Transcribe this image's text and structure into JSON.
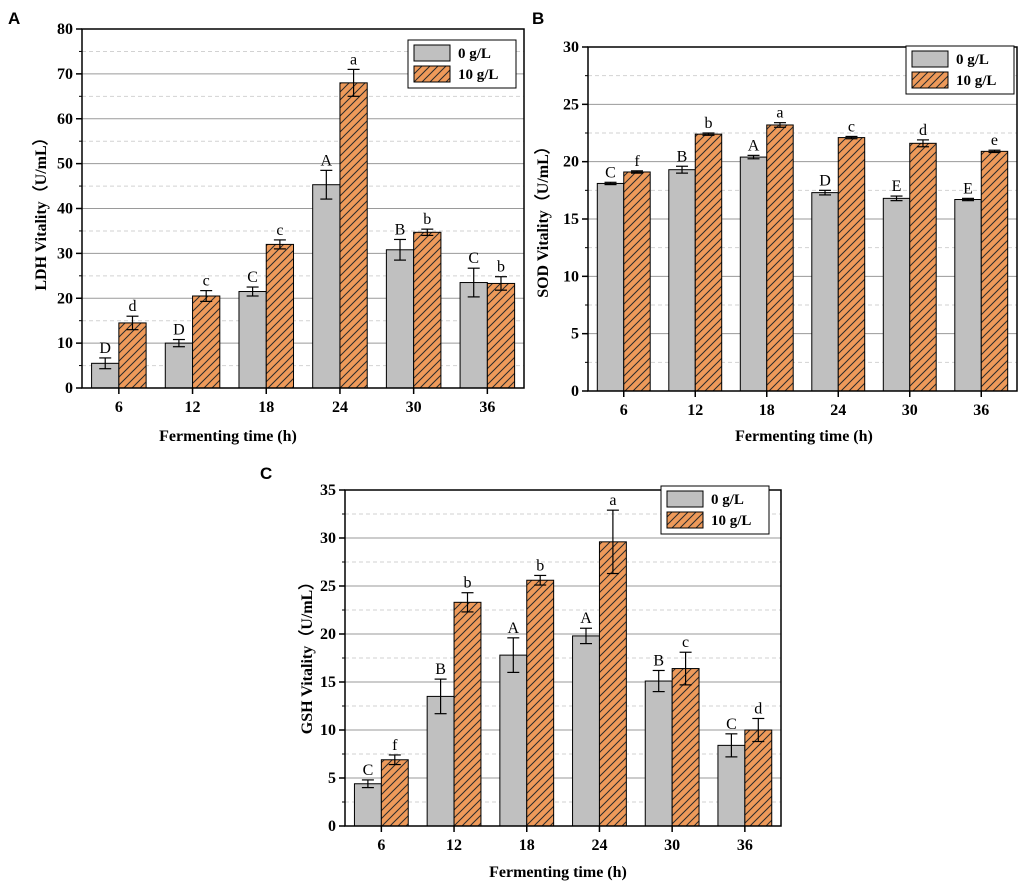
{
  "colors": {
    "control_fill": "#c0c0c0",
    "treatment_fill": "#ee9a5a",
    "hatch": "#2a2a2a",
    "grid_major": "#9a9a9a",
    "grid_minor": "#d2d2d2"
  },
  "chart_data": [
    {
      "panel": "A",
      "type": "bar",
      "xlabel": "Fermenting time (h)",
      "ylabel": "LDH Vitality（U/mL）",
      "categories": [
        "6",
        "12",
        "18",
        "24",
        "30",
        "36"
      ],
      "ylim": [
        0,
        80
      ],
      "yticks": [
        0,
        10,
        20,
        30,
        40,
        50,
        60,
        70,
        80
      ],
      "grid": true,
      "legend_position": "top-right",
      "series": [
        {
          "name": "0 g/L",
          "values": [
            5.5,
            10.0,
            21.5,
            45.3,
            30.8,
            23.5
          ],
          "errors": [
            1.2,
            0.8,
            1.0,
            3.2,
            2.3,
            3.2
          ],
          "labels": [
            "D",
            "D",
            "C",
            "A",
            "B",
            "C"
          ]
        },
        {
          "name": "10 g/L",
          "values": [
            14.5,
            20.5,
            32.0,
            68.0,
            34.7,
            23.3
          ],
          "errors": [
            1.5,
            1.2,
            1.0,
            3.0,
            0.7,
            1.5
          ],
          "labels": [
            "d",
            "c",
            "c",
            "a",
            "b",
            "b"
          ]
        }
      ]
    },
    {
      "panel": "B",
      "type": "bar",
      "xlabel": "Fermenting time (h)",
      "ylabel": "SOD Vitality（U/mL）",
      "categories": [
        "6",
        "12",
        "18",
        "24",
        "30",
        "36"
      ],
      "ylim": [
        0,
        30
      ],
      "yticks": [
        0,
        5,
        10,
        15,
        20,
        25,
        30
      ],
      "grid": true,
      "legend_position": "top-right",
      "series": [
        {
          "name": "0 g/L",
          "values": [
            18.1,
            19.3,
            20.4,
            17.3,
            16.8,
            16.7
          ],
          "errors": [
            0.1,
            0.3,
            0.15,
            0.2,
            0.2,
            0.1
          ],
          "labels": [
            "C",
            "B",
            "A",
            "D",
            "E",
            "E"
          ]
        },
        {
          "name": "10 g/L",
          "values": [
            19.1,
            22.4,
            23.2,
            22.1,
            21.6,
            20.9
          ],
          "errors": [
            0.1,
            0.1,
            0.2,
            0.1,
            0.3,
            0.1
          ],
          "labels": [
            "f",
            "b",
            "a",
            "c",
            "d",
            "e"
          ]
        }
      ]
    },
    {
      "panel": "C",
      "type": "bar",
      "xlabel": "Fermenting time (h)",
      "ylabel": "GSH Vitality（U/mL）",
      "categories": [
        "6",
        "12",
        "18",
        "24",
        "30",
        "36"
      ],
      "ylim": [
        0,
        35
      ],
      "yticks": [
        0,
        5,
        10,
        15,
        20,
        25,
        30,
        35
      ],
      "grid": true,
      "legend_position": "top-right",
      "series": [
        {
          "name": "0 g/L",
          "values": [
            4.4,
            13.5,
            17.8,
            19.8,
            15.1,
            8.4
          ],
          "errors": [
            0.4,
            1.8,
            1.8,
            0.8,
            1.1,
            1.2
          ],
          "labels": [
            "C",
            "B",
            "A",
            "A",
            "B",
            "C"
          ]
        },
        {
          "name": "10 g/L",
          "values": [
            6.9,
            23.3,
            25.6,
            29.6,
            16.4,
            10.0
          ],
          "errors": [
            0.5,
            1.0,
            0.5,
            3.3,
            1.7,
            1.2
          ],
          "labels": [
            "f",
            "b",
            "b",
            "a",
            "c",
            "d"
          ]
        }
      ]
    }
  ]
}
